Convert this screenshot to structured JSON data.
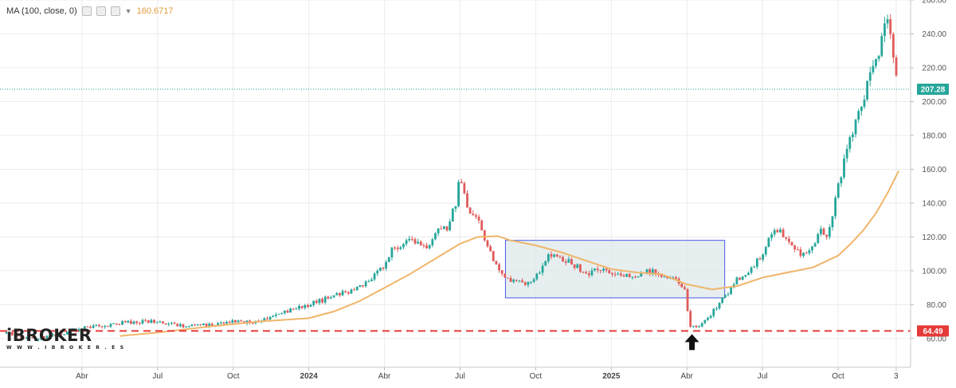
{
  "legend": {
    "indicator_label": "MA (100, close, 0)",
    "ma_value": "160.6717",
    "ma_color": "#f0b56a"
  },
  "logo": {
    "brand": "iBROKER",
    "url": "W W W . I B R O K E R . E S"
  },
  "colors": {
    "up": "#26a69a",
    "down": "#e05a5a",
    "price_line": "#26a69a",
    "support_line": "#e63a3a",
    "range_box_fill": "#dde8eb",
    "range_box_stroke": "#4b5ce6"
  },
  "chart_data": {
    "type": "line",
    "subtype": "candlestick",
    "xlabel": "",
    "ylabel": "",
    "ylim": [
      43,
      260
    ],
    "y_ticks": [
      "60.00",
      "80.00",
      "100.00",
      "120.00",
      "140.00",
      "160.00",
      "180.00",
      "200.00",
      "220.00",
      "240.00",
      "260.00"
    ],
    "x_ticks": [
      {
        "label": "Abr",
        "bold": false
      },
      {
        "label": "Jul",
        "bold": false
      },
      {
        "label": "Oct",
        "bold": false
      },
      {
        "label": "2024",
        "bold": true
      },
      {
        "label": "Abr",
        "bold": false
      },
      {
        "label": "Jul",
        "bold": false
      },
      {
        "label": "Oct",
        "bold": false
      },
      {
        "label": "2025",
        "bold": true
      },
      {
        "label": "Abr",
        "bold": false
      },
      {
        "label": "Jul",
        "bold": false
      },
      {
        "label": "Oct",
        "bold": false
      },
      {
        "label": "3",
        "bold": false
      }
    ],
    "x_tick_months": [
      3,
      6,
      9,
      12,
      15,
      18,
      21,
      24,
      27,
      30,
      33,
      35.3
    ],
    "price_path": {
      "months": [
        0,
        1,
        2,
        3,
        4,
        5,
        6,
        7,
        8,
        9,
        10,
        11,
        12,
        13,
        14,
        14.5,
        15,
        15.3,
        16,
        16.8,
        17,
        17.5,
        17.8,
        18,
        18.3,
        18.7,
        19,
        19.5,
        20,
        20.5,
        21,
        21.5,
        22,
        22.5,
        23,
        23.5,
        24,
        24.5,
        25,
        25.5,
        26,
        26.5,
        26.9,
        27.1,
        27.5,
        28,
        28.5,
        29,
        29.5,
        30,
        30.5,
        31,
        31.5,
        32,
        32.3,
        32.6,
        33,
        33.3,
        33.6,
        34,
        34.2,
        34.5,
        34.8,
        35,
        35.2,
        35.4
      ],
      "values": [
        63,
        60,
        62,
        66,
        68,
        70,
        70,
        67,
        68,
        70,
        70,
        76,
        80,
        85,
        90,
        95,
        104,
        112,
        118,
        114,
        122,
        126,
        138,
        155,
        135,
        130,
        118,
        100,
        95,
        92,
        96,
        110,
        108,
        104,
        98,
        102,
        99,
        96,
        98,
        100,
        98,
        95,
        90,
        66,
        67,
        75,
        85,
        95,
        100,
        110,
        125,
        120,
        110,
        115,
        125,
        120,
        150,
        170,
        185,
        200,
        212,
        225,
        240,
        250,
        225,
        207
      ]
    },
    "ma_path": {
      "months": [
        4.5,
        6,
        8,
        10,
        12,
        13,
        14,
        15,
        16,
        17,
        18,
        18.7,
        19.5,
        20,
        21,
        22,
        23,
        24,
        25,
        26,
        27,
        28,
        29,
        30,
        31,
        32,
        33,
        33.5,
        34,
        34.5,
        35,
        35.4
      ],
      "values": [
        61.5,
        63.5,
        67,
        70,
        72,
        76,
        82,
        90,
        98,
        107,
        116,
        120,
        120.5,
        118,
        115,
        111,
        106,
        101,
        99,
        98,
        92,
        89,
        91,
        96,
        99,
        102,
        109,
        116,
        124,
        134,
        147,
        159
      ]
    },
    "series": [
      {
        "name": "MA (100, close, 0)",
        "last_value": 160.6717
      }
    ],
    "price_labels": [
      {
        "value": 207.28,
        "label": "207.28",
        "color": "#26a69a",
        "style": "dotted"
      },
      {
        "value": 64.49,
        "label": "64.49",
        "color": "#e63a3a",
        "style": "dashed"
      }
    ],
    "range_box": {
      "x_months": [
        19.8,
        28.5
      ],
      "y_range": [
        84,
        118
      ]
    },
    "arrow_annotation": {
      "month": 27.2,
      "direction": "up"
    },
    "grid": true
  }
}
